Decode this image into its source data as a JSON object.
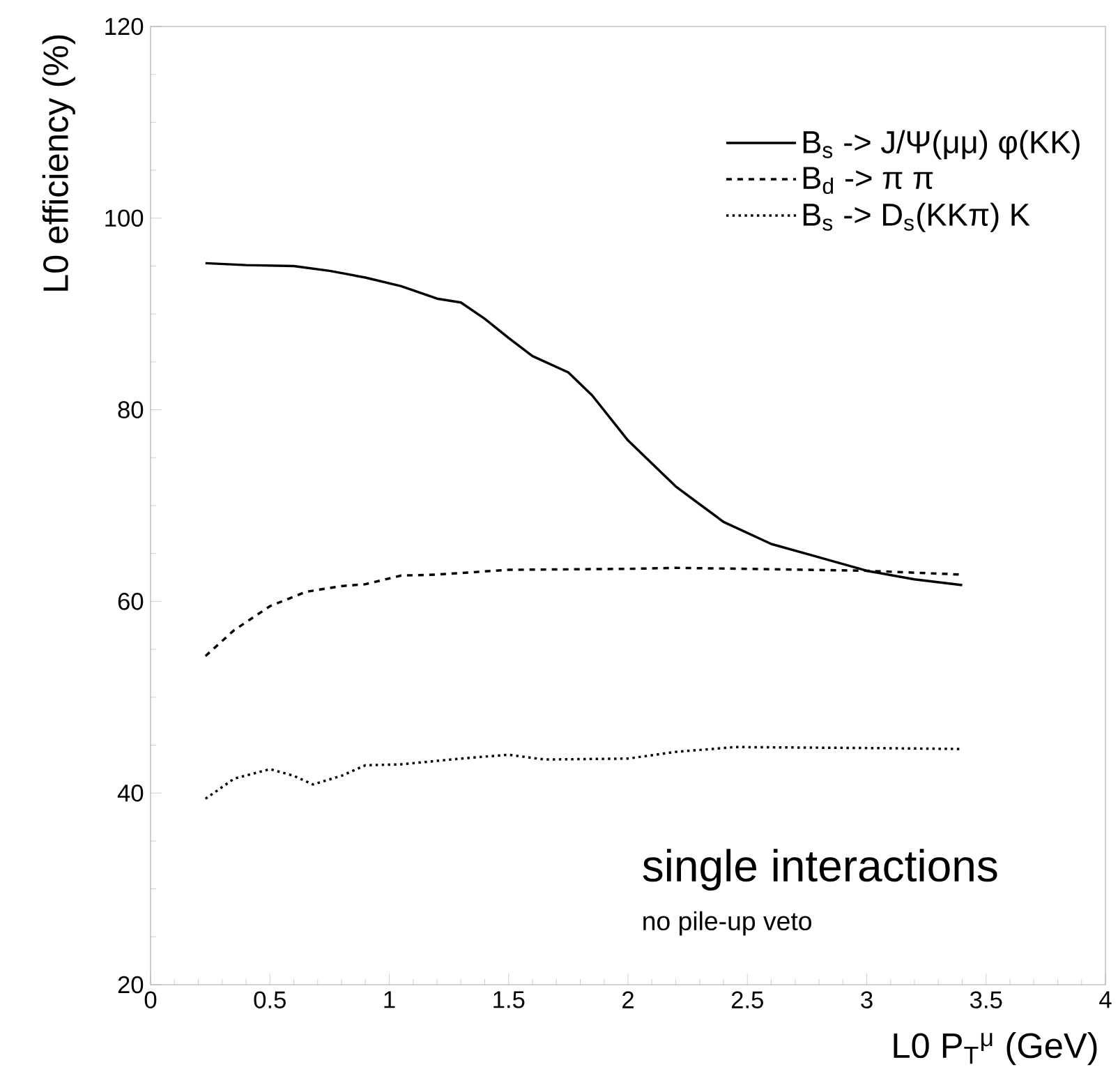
{
  "chart_data": {
    "type": "line",
    "xlabel": "L0 P$_{T}$$^{μ}$ (GeV)",
    "ylabel": "L0 efficiency (%)",
    "xlim": [
      0,
      4
    ],
    "ylim": [
      20,
      120
    ],
    "xticks": [
      0,
      0.5,
      1,
      1.5,
      2,
      2.5,
      3,
      3.5,
      4
    ],
    "yticks": [
      20,
      40,
      60,
      80,
      100,
      120
    ],
    "grid": false,
    "legend": "top right",
    "marker": "none",
    "annotations": [
      "single interactions",
      "no pile-up veto"
    ],
    "series": [
      {
        "name": "B$_{s}$ -> J/Ψ(μμ) φ(KK)",
        "color": "#000000",
        "line_style": "solid",
        "x": [
          0.23,
          0.4,
          0.6,
          0.75,
          0.9,
          1.05,
          1.2,
          1.3,
          1.4,
          1.5,
          1.6,
          1.75,
          1.85,
          2.0,
          2.2,
          2.4,
          2.6,
          2.8,
          3.0,
          3.2,
          3.4
        ],
        "values": [
          95.3,
          95.1,
          95.0,
          94.5,
          93.8,
          92.9,
          91.6,
          91.2,
          89.5,
          87.5,
          85.6,
          83.9,
          81.5,
          76.8,
          72.0,
          68.3,
          66.0,
          64.6,
          63.2,
          62.3,
          61.7
        ]
      },
      {
        "name": "B$_{d}$ -> π π",
        "color": "#000000",
        "line_style": "dashed",
        "x": [
          0.23,
          0.35,
          0.5,
          0.65,
          0.8,
          0.9,
          1.05,
          1.2,
          1.5,
          2.0,
          2.2,
          2.5,
          3.0,
          3.4
        ],
        "values": [
          54.3,
          57,
          59.5,
          61,
          61.6,
          61.8,
          62.7,
          62.8,
          63.3,
          63.4,
          63.5,
          63.4,
          63.2,
          62.8
        ]
      },
      {
        "name": "B$_{s}$ -> D$_{s}$(KKπ) K",
        "color": "#000000",
        "line_style": "dotted",
        "x": [
          0.23,
          0.35,
          0.5,
          0.6,
          0.68,
          0.8,
          0.9,
          1.05,
          1.3,
          1.5,
          1.65,
          2.0,
          2.2,
          2.45,
          3.0,
          3.4
        ],
        "values": [
          39.4,
          41.5,
          42.5,
          41.8,
          40.9,
          41.8,
          42.9,
          43.0,
          43.6,
          44.0,
          43.5,
          43.6,
          44.3,
          44.8,
          44.7,
          44.6
        ]
      }
    ]
  }
}
